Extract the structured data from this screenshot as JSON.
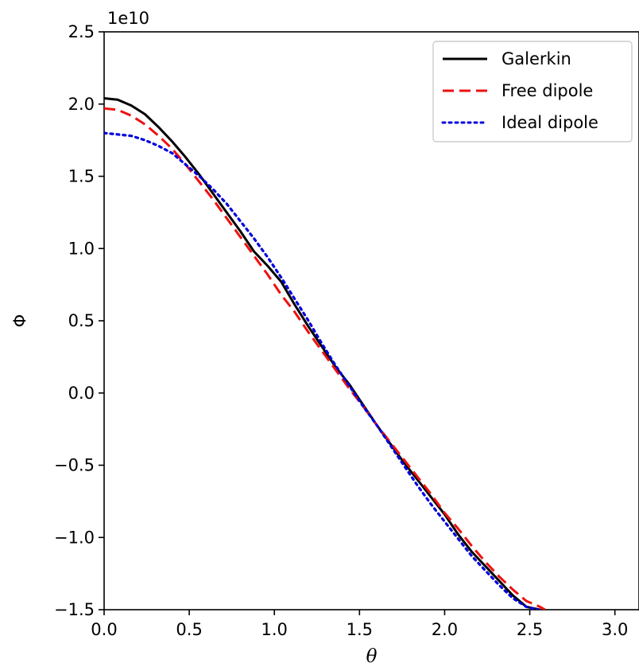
{
  "chart_data": {
    "type": "line",
    "title": "",
    "xlabel": "θ",
    "ylabel": "Φ",
    "y_offset_label": "1e10",
    "xlim": [
      0.0,
      3.14159
    ],
    "ylim": [
      -1.5,
      2.5
    ],
    "x_ticks": [
      0.0,
      0.5,
      1.0,
      1.5,
      2.0,
      2.5,
      3.0
    ],
    "x_tick_labels": [
      "0.0",
      "0.5",
      "1.0",
      "1.5",
      "2.0",
      "2.5",
      "3.0"
    ],
    "y_ticks": [
      -1.5,
      -1.0,
      -0.5,
      0.0,
      0.5,
      1.0,
      1.5,
      2.0,
      2.5
    ],
    "y_tick_labels": [
      "−1.5",
      "−1.0",
      "−0.5",
      "0.0",
      "0.5",
      "1.0",
      "1.5",
      "2.0",
      "2.5"
    ],
    "grid": false,
    "legend_position": "top-right",
    "series": [
      {
        "name": "Galerkin",
        "color": "#000000",
        "style": "solid",
        "x": [
          0.0,
          0.08,
          0.16,
          0.24,
          0.32,
          0.4,
          0.48,
          0.56,
          0.64,
          0.72,
          0.8,
          0.88,
          0.96,
          1.04,
          1.12,
          1.2,
          1.28,
          1.36,
          1.44,
          1.52,
          1.6,
          1.68,
          1.76,
          1.84,
          1.92,
          2.0,
          2.08,
          2.16,
          2.24,
          2.32,
          2.4,
          2.48,
          2.56
        ],
        "y": [
          2.04,
          2.03,
          1.99,
          1.93,
          1.84,
          1.74,
          1.63,
          1.51,
          1.38,
          1.25,
          1.12,
          0.98,
          0.88,
          0.77,
          0.61,
          0.46,
          0.32,
          0.18,
          0.06,
          -0.08,
          -0.22,
          -0.35,
          -0.48,
          -0.6,
          -0.72,
          -0.84,
          -0.98,
          -1.1,
          -1.2,
          -1.3,
          -1.4,
          -1.48,
          -1.5
        ]
      },
      {
        "name": "Free dipole",
        "color": "#ee1111",
        "style": "dashed",
        "x": [
          0.0,
          0.08,
          0.16,
          0.24,
          0.32,
          0.4,
          0.48,
          0.56,
          0.64,
          0.72,
          0.8,
          0.88,
          0.96,
          1.04,
          1.12,
          1.2,
          1.28,
          1.36,
          1.44,
          1.52,
          1.6,
          1.68,
          1.76,
          1.84,
          1.92,
          2.0,
          2.08,
          2.16,
          2.24,
          2.32,
          2.4,
          2.48,
          2.56,
          2.59
        ],
        "y": [
          1.97,
          1.96,
          1.92,
          1.86,
          1.78,
          1.69,
          1.58,
          1.46,
          1.34,
          1.21,
          1.08,
          0.95,
          0.82,
          0.68,
          0.56,
          0.42,
          0.29,
          0.16,
          0.03,
          -0.09,
          -0.22,
          -0.34,
          -0.46,
          -0.58,
          -0.7,
          -0.83,
          -0.94,
          -1.06,
          -1.17,
          -1.27,
          -1.36,
          -1.44,
          -1.48,
          -1.5
        ]
      },
      {
        "name": "Ideal dipole",
        "color": "#0000dd",
        "style": "dotted",
        "x": [
          0.0,
          0.08,
          0.16,
          0.24,
          0.32,
          0.4,
          0.48,
          0.56,
          0.64,
          0.72,
          0.8,
          0.88,
          0.96,
          1.04,
          1.12,
          1.2,
          1.28,
          1.36,
          1.44,
          1.52,
          1.6,
          1.68,
          1.76,
          1.84,
          1.92,
          2.0,
          2.08,
          2.16,
          2.24,
          2.32,
          2.4,
          2.48,
          2.55
        ],
        "y": [
          1.8,
          1.79,
          1.78,
          1.75,
          1.71,
          1.66,
          1.58,
          1.5,
          1.41,
          1.31,
          1.19,
          1.07,
          0.94,
          0.8,
          0.65,
          0.5,
          0.34,
          0.19,
          0.05,
          -0.09,
          -0.22,
          -0.36,
          -0.5,
          -0.64,
          -0.77,
          -0.89,
          -1.01,
          -1.13,
          -1.23,
          -1.33,
          -1.42,
          -1.48,
          -1.5
        ]
      }
    ]
  }
}
